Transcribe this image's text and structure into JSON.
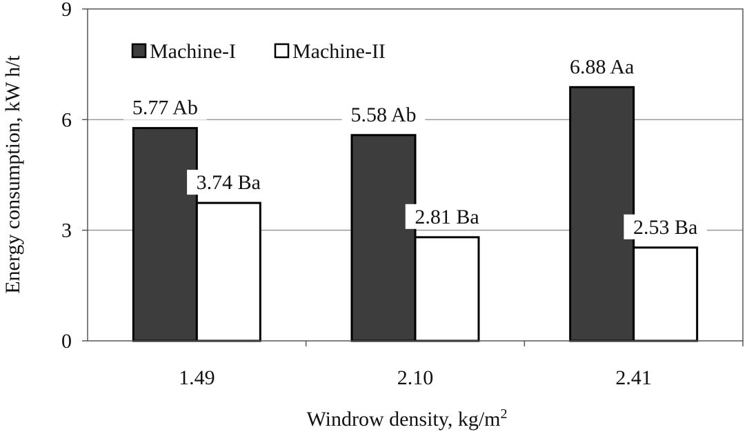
{
  "chart_data": {
    "type": "bar",
    "title": "",
    "xlabel": "Windrow density, kg/m",
    "xlabel_superscript": "2",
    "ylabel": "Energy consumption,  kW h/t",
    "categories": [
      "1.49",
      "2.10",
      "2.41"
    ],
    "series": [
      {
        "name": "Machine-I",
        "color": "#3d3d3d",
        "values": [
          5.77,
          5.58,
          6.88
        ],
        "labels": [
          "5.77 Ab",
          "5.58 Ab",
          "6.88 Aa"
        ]
      },
      {
        "name": "Machine-II",
        "color": "#ffffff",
        "values": [
          3.74,
          2.81,
          2.53
        ],
        "labels": [
          "3.74 Ba",
          "2.81 Ba",
          "2.53 Ba"
        ]
      }
    ],
    "ylim": [
      0,
      9
    ],
    "yticks": [
      "0",
      "3",
      "6",
      "9"
    ],
    "grid": true,
    "legend_position": "top-left"
  }
}
